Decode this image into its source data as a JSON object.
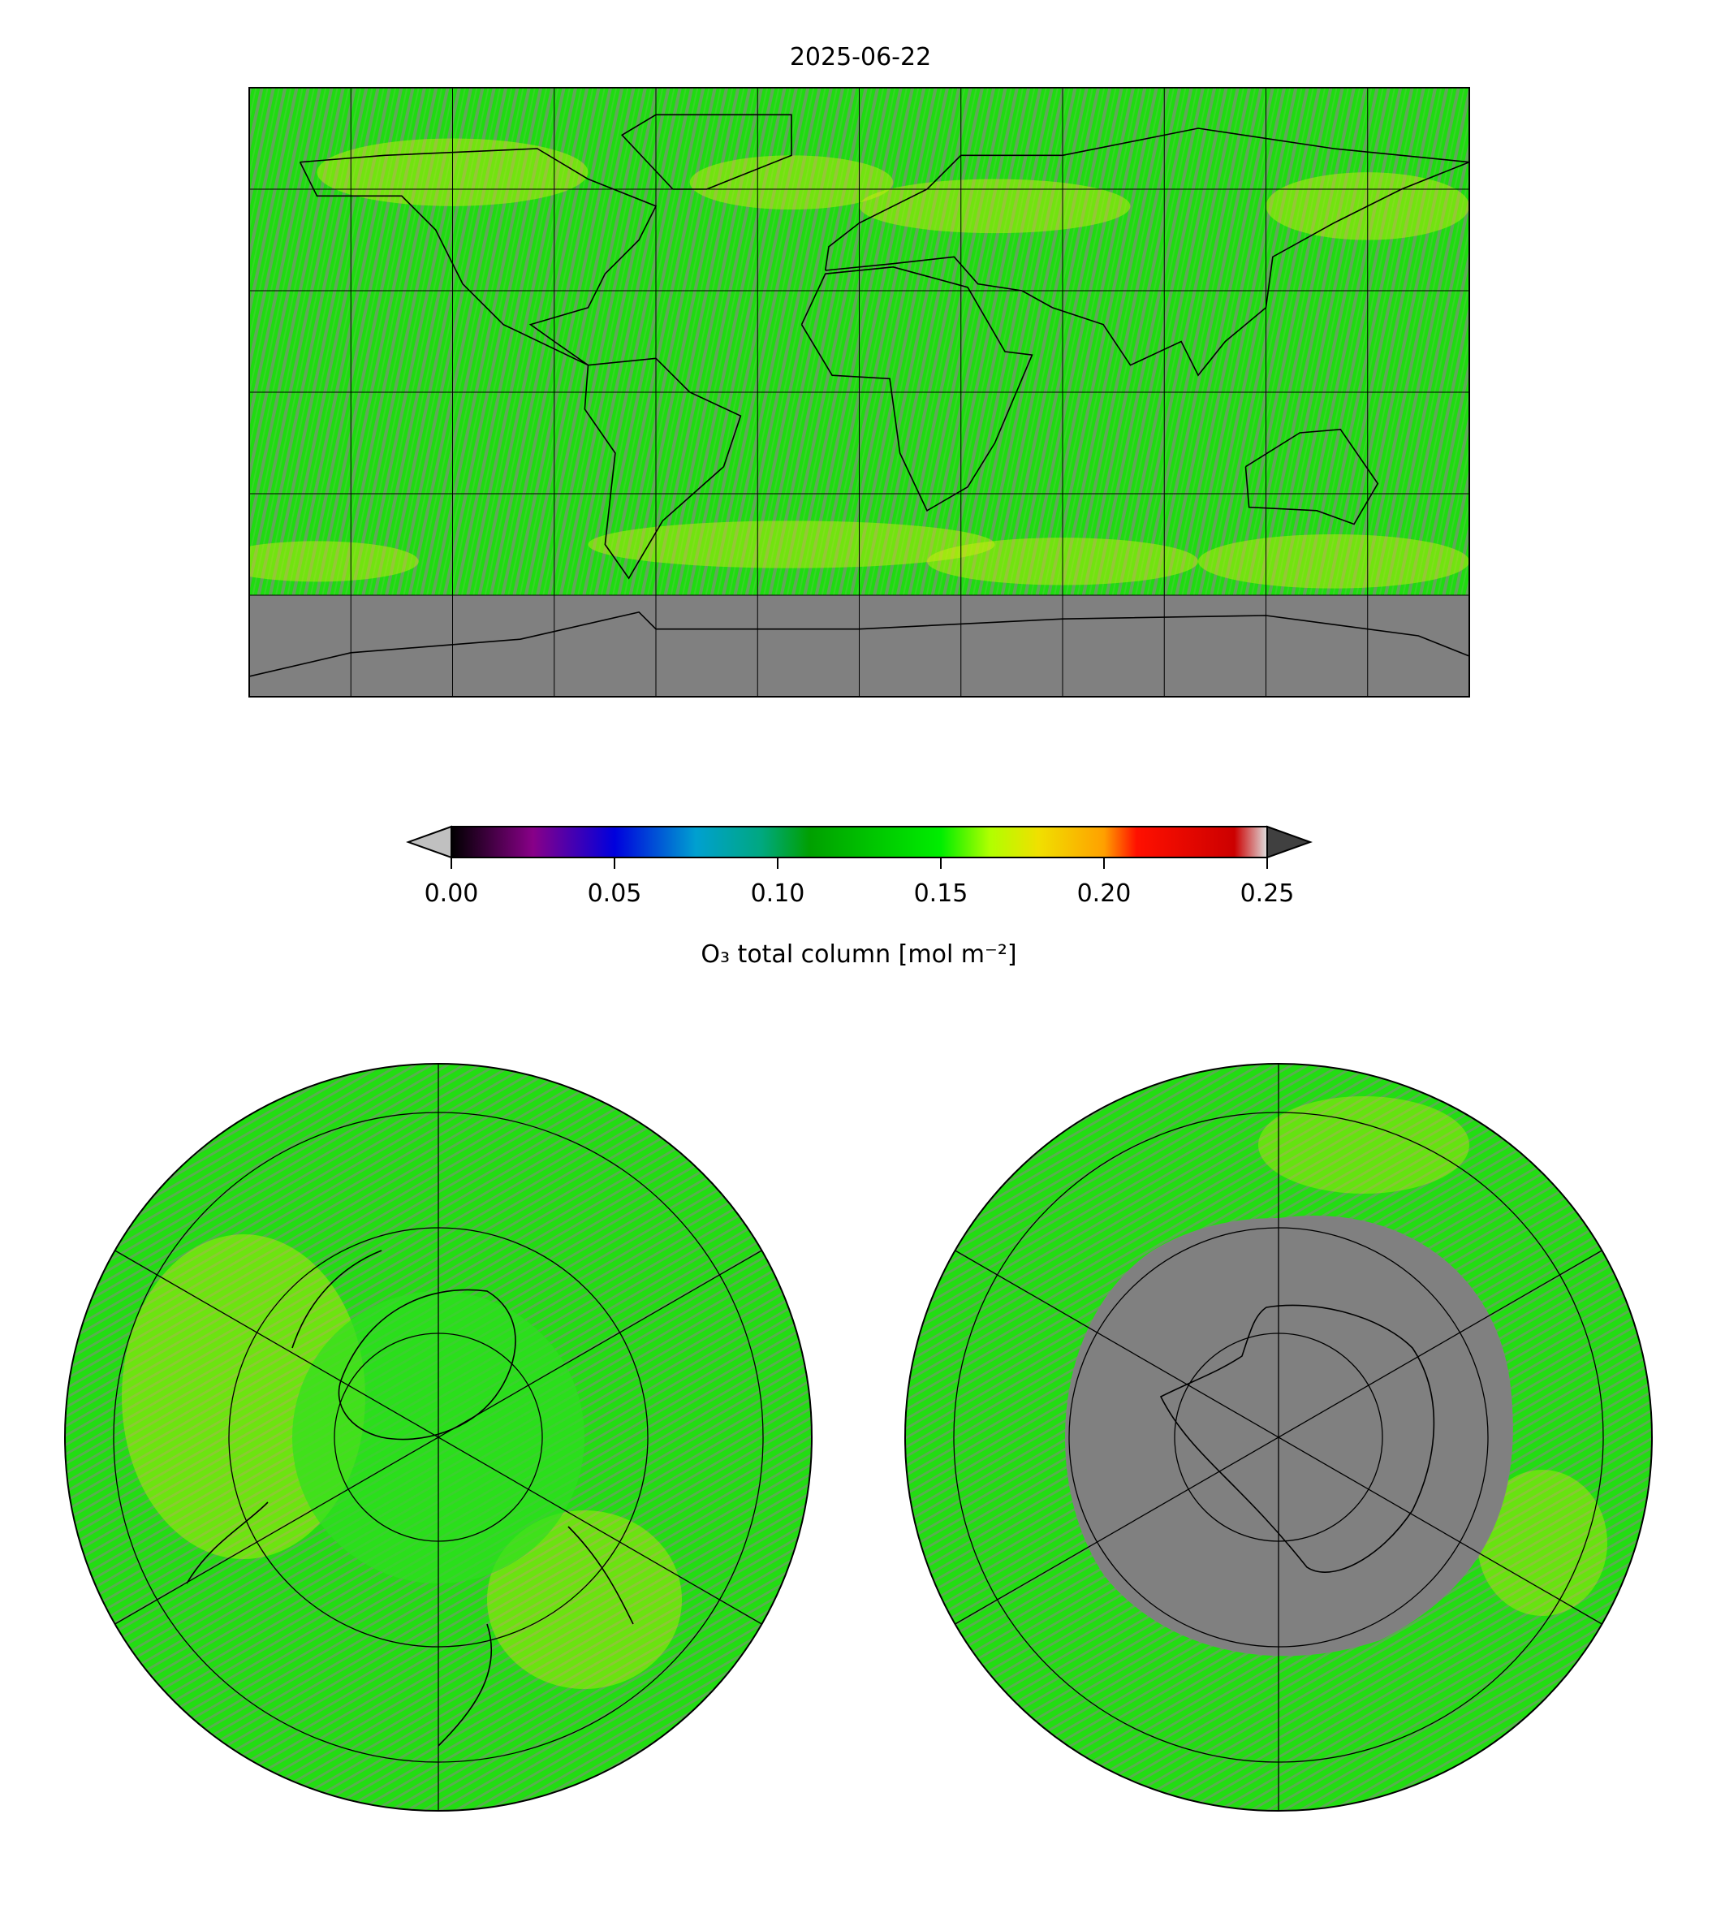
{
  "chart_data": {
    "type": "heatmap",
    "title": "2025-06-22",
    "panels": [
      "global equirectangular map",
      "north polar stereographic",
      "south polar stereographic"
    ],
    "colorbar": {
      "label": "O₃ total column [mol m⁻²]",
      "range": [
        0.0,
        0.25
      ],
      "ticks": [
        "0.00",
        "0.05",
        "0.10",
        "0.15",
        "0.20",
        "0.25"
      ],
      "extend": "both",
      "colormap_stops": [
        {
          "v": 0.0,
          "c": "#000000"
        },
        {
          "v": 0.025,
          "c": "#880088"
        },
        {
          "v": 0.05,
          "c": "#0000dd"
        },
        {
          "v": 0.075,
          "c": "#00a0d0"
        },
        {
          "v": 0.095,
          "c": "#00a880"
        },
        {
          "v": 0.11,
          "c": "#00a000"
        },
        {
          "v": 0.15,
          "c": "#00ee00"
        },
        {
          "v": 0.165,
          "c": "#b0ff00"
        },
        {
          "v": 0.18,
          "c": "#f0e000"
        },
        {
          "v": 0.2,
          "c": "#ffa000"
        },
        {
          "v": 0.21,
          "c": "#ff1000"
        },
        {
          "v": 0.24,
          "c": "#cc0000"
        },
        {
          "v": 0.25,
          "c": "#dddddd"
        }
      ],
      "under_color": "#c0c0c0",
      "over_color": "#404040"
    },
    "nodata_color": "#808080",
    "typical_value_range": [
      0.13,
      0.19
    ]
  }
}
